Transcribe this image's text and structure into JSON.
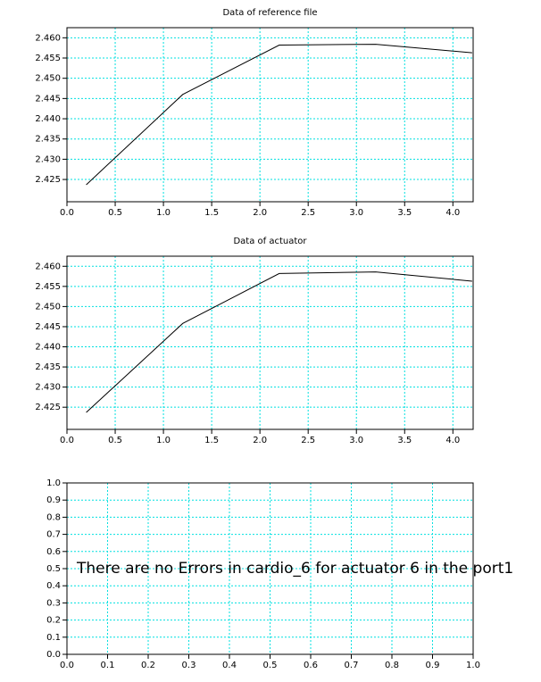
{
  "chart_data": [
    {
      "type": "line",
      "title": "Data of reference file",
      "grid": true,
      "grid_color": "#00e0e0",
      "x": [
        0.2,
        1.2,
        2.2,
        3.2,
        4.2
      ],
      "series": [
        {
          "color": "#000000",
          "values": [
            2.4237,
            2.446,
            2.4582,
            2.4584,
            2.4563
          ]
        }
      ],
      "xlim": [
        0,
        4.21
      ],
      "ylim": [
        2.4195,
        2.4625
      ],
      "xticks": [
        {
          "value": 0,
          "label": "0.0"
        },
        0.5,
        {
          "value": 1,
          "label": "1.0"
        },
        1.5,
        {
          "value": 2,
          "label": "2.0"
        },
        2.5,
        {
          "value": 3,
          "label": "3.0"
        },
        3.5,
        {
          "value": 4,
          "label": "4.0"
        }
      ],
      "yticks": [
        2.425,
        {
          "value": 2.43,
          "label": "2.430"
        },
        2.435,
        {
          "value": 2.44,
          "label": "2.440"
        },
        2.445,
        {
          "value": 2.45,
          "label": "2.450"
        },
        2.455,
        {
          "value": 2.46,
          "label": "2.460"
        }
      ]
    },
    {
      "type": "line",
      "title": "Data of actuator",
      "grid": true,
      "grid_color": "#00e0e0",
      "x": [
        0.2,
        1.2,
        2.2,
        3.2,
        4.2
      ],
      "series": [
        {
          "color": "#000000",
          "values": [
            2.4237,
            2.4458,
            2.4582,
            2.4586,
            2.4563
          ]
        }
      ],
      "xlim": [
        0,
        4.21
      ],
      "ylim": [
        2.4195,
        2.4625
      ],
      "xticks": [
        {
          "value": 0,
          "label": "0.0"
        },
        0.5,
        {
          "value": 1,
          "label": "1.0"
        },
        1.5,
        {
          "value": 2,
          "label": "2.0"
        },
        2.5,
        {
          "value": 3,
          "label": "3.0"
        },
        3.5,
        {
          "value": 4,
          "label": "4.0"
        }
      ],
      "yticks": [
        2.425,
        {
          "value": 2.43,
          "label": "2.430"
        },
        2.435,
        {
          "value": 2.44,
          "label": "2.440"
        },
        2.445,
        {
          "value": 2.45,
          "label": "2.450"
        },
        2.455,
        {
          "value": 2.46,
          "label": "2.460"
        }
      ]
    },
    {
      "type": "line",
      "grid": true,
      "grid_color": "#00e0e0",
      "annotation": "There are no Errors in cardio_6 for actuator 6 in the port1",
      "xlim": [
        0,
        1
      ],
      "ylim": [
        0,
        1
      ],
      "xticks": [
        {
          "value": 0,
          "label": "0.0"
        },
        0.1,
        0.2,
        0.3,
        0.4,
        0.5,
        0.6,
        0.7,
        0.8,
        0.9,
        {
          "value": 1,
          "label": "1.0"
        }
      ],
      "yticks": [
        {
          "value": 0,
          "label": "0.0"
        },
        0.1,
        0.2,
        0.3,
        0.4,
        0.5,
        0.6,
        0.7,
        0.8,
        0.9,
        {
          "value": 1,
          "label": "1.0"
        }
      ]
    }
  ]
}
